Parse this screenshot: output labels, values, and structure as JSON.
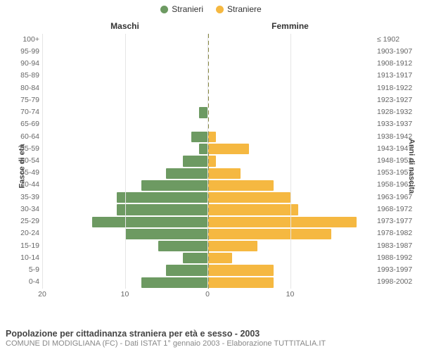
{
  "legend": {
    "male": {
      "label": "Stranieri",
      "color": "#6d9a62"
    },
    "female": {
      "label": "Straniere",
      "color": "#f5b841"
    }
  },
  "headers": {
    "left": "Maschi",
    "right": "Femmine"
  },
  "axis_left_title": "Fasce di età",
  "axis_right_title": "Anni di nascita",
  "caption_title": "Popolazione per cittadinanza straniera per età e sesso - 2003",
  "caption_sub": "COMUNE DI MODIGLIANA (FC) - Dati ISTAT 1° gennaio 2003 - Elaborazione TUTTITALIA.IT",
  "x_axis": {
    "max": 20,
    "ticks_left": [
      20,
      10,
      0
    ],
    "ticks_right": [
      0,
      10
    ]
  },
  "colors": {
    "grid": "#e5e5e5",
    "center_line": "#888844",
    "background": "#ffffff"
  },
  "rows": [
    {
      "age": "100+",
      "year": "≤ 1902",
      "m": 0,
      "f": 0
    },
    {
      "age": "95-99",
      "year": "1903-1907",
      "m": 0,
      "f": 0
    },
    {
      "age": "90-94",
      "year": "1908-1912",
      "m": 0,
      "f": 0
    },
    {
      "age": "85-89",
      "year": "1913-1917",
      "m": 0,
      "f": 0
    },
    {
      "age": "80-84",
      "year": "1918-1922",
      "m": 0,
      "f": 0
    },
    {
      "age": "75-79",
      "year": "1923-1927",
      "m": 0,
      "f": 0
    },
    {
      "age": "70-74",
      "year": "1928-1932",
      "m": 1,
      "f": 0
    },
    {
      "age": "65-69",
      "year": "1933-1937",
      "m": 0,
      "f": 0
    },
    {
      "age": "60-64",
      "year": "1938-1942",
      "m": 2,
      "f": 1
    },
    {
      "age": "55-59",
      "year": "1943-1947",
      "m": 1,
      "f": 5
    },
    {
      "age": "50-54",
      "year": "1948-1952",
      "m": 3,
      "f": 1
    },
    {
      "age": "45-49",
      "year": "1953-1957",
      "m": 5,
      "f": 4
    },
    {
      "age": "40-44",
      "year": "1958-1962",
      "m": 8,
      "f": 8
    },
    {
      "age": "35-39",
      "year": "1963-1967",
      "m": 11,
      "f": 10
    },
    {
      "age": "30-34",
      "year": "1968-1972",
      "m": 11,
      "f": 11
    },
    {
      "age": "25-29",
      "year": "1973-1977",
      "m": 14,
      "f": 18
    },
    {
      "age": "20-24",
      "year": "1978-1982",
      "m": 10,
      "f": 15
    },
    {
      "age": "15-19",
      "year": "1983-1987",
      "m": 6,
      "f": 6
    },
    {
      "age": "10-14",
      "year": "1988-1992",
      "m": 3,
      "f": 3
    },
    {
      "age": "5-9",
      "year": "1993-1997",
      "m": 5,
      "f": 8
    },
    {
      "age": "0-4",
      "year": "1998-2002",
      "m": 8,
      "f": 8
    }
  ]
}
